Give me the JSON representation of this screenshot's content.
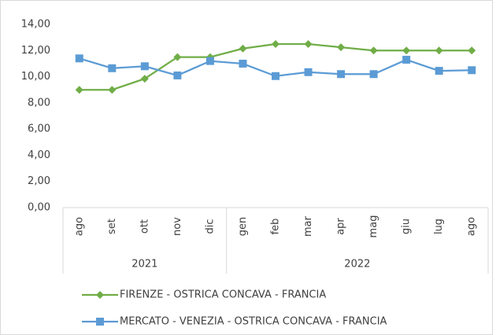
{
  "chart_data": {
    "type": "line",
    "categories": [
      "ago",
      "set",
      "ott",
      "nov",
      "dic",
      "gen",
      "feb",
      "mar",
      "apr",
      "mag",
      "giu",
      "lug",
      "ago"
    ],
    "category_groups": [
      {
        "label": "2021",
        "count": 5
      },
      {
        "label": "2022",
        "count": 8
      }
    ],
    "series": [
      {
        "name": "FIRENZE - OSTRICA CONCAVA - FRANCIA",
        "color": "#70ad47",
        "marker": "diamond",
        "values": [
          9.0,
          9.0,
          9.85,
          11.5,
          11.5,
          12.15,
          12.5,
          12.5,
          12.25,
          12.0,
          12.0,
          12.0,
          12.0
        ]
      },
      {
        "name": "MERCATO - VENEZIA - OSTRICA CONCAVA - FRANCIA",
        "color": "#5b9bd5",
        "marker": "square",
        "values": [
          11.4,
          10.65,
          10.8,
          10.1,
          11.2,
          11.0,
          10.05,
          10.35,
          10.2,
          10.2,
          11.3,
          10.45,
          10.5
        ]
      }
    ],
    "ylim": [
      0,
      14
    ],
    "yticks": [
      {
        "value": 0,
        "label": "0,00"
      },
      {
        "value": 2,
        "label": "2,00"
      },
      {
        "value": 4,
        "label": "4,00"
      },
      {
        "value": 6,
        "label": "6,00"
      },
      {
        "value": 8,
        "label": "8,00"
      },
      {
        "value": 10,
        "label": "10,00"
      },
      {
        "value": 12,
        "label": "12,00"
      },
      {
        "value": 14,
        "label": "14,00"
      }
    ],
    "grid": false,
    "legend": "bottom"
  }
}
